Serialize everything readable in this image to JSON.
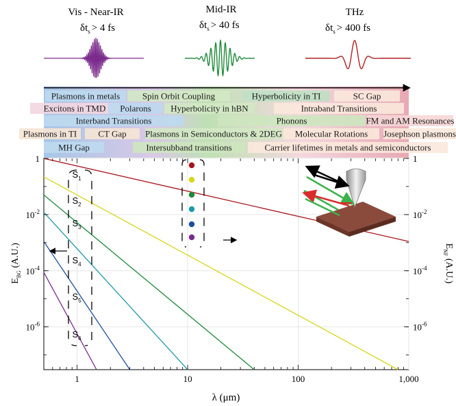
{
  "pulses": [
    {
      "name": "Vis - Near-IR",
      "duration": "δt",
      "sub": "s",
      "rel": "> 4 fs",
      "color": "#7b2b8c"
    },
    {
      "name": "Mid-IR",
      "duration": "δt",
      "sub": "s",
      "rel": "> 40 fs",
      "color": "#1f8a3a"
    },
    {
      "name": "THz",
      "duration": "δt",
      "sub": "s",
      "rel": "> 400 fs",
      "color": "#b01e23"
    }
  ],
  "phenomena": [
    {
      "label": "Plasmons in metals",
      "color": "#bcd9ef"
    },
    {
      "label": "Spin Orbit Coupling",
      "color": "#d3e8c4"
    },
    {
      "label": "Hyperbolicity in TI",
      "color": "#bfe0c4"
    },
    {
      "label": "SC Gap",
      "color": "#fbe8dc"
    },
    {
      "label": "Excitons in TMD",
      "color": "#f3d6e0"
    },
    {
      "label": "Polarons",
      "color": "#bcd9ef"
    },
    {
      "label": "Hyperbolicity in hBN",
      "color": "#d3e8c4"
    },
    {
      "label": "Intraband Transitions",
      "color": "#fbe8dc"
    },
    {
      "label": "Interband Transitions",
      "color": "#bcd9ef"
    },
    {
      "label": "Phonons",
      "color": "#cde5bf"
    },
    {
      "label": "FM and AM Resonances",
      "color": "#f6d6d6"
    },
    {
      "label": "Plasmons in TI",
      "color": "#f6e4d4"
    },
    {
      "label": "CT Gap",
      "color": "#f6e4d4"
    },
    {
      "label": "Plasmons in Semiconductors & 2DEG",
      "color": "#d3e8c4"
    },
    {
      "label": "Molecular Rotations",
      "color": "#fbe8dc"
    },
    {
      "label": "Josephson plasmons",
      "color": "#fbe8dc"
    },
    {
      "label": "MH Gap",
      "color": "#bcd9ef"
    },
    {
      "label": "Intersubband transitions",
      "color": "#cde5bf"
    },
    {
      "label": "Carrier lifetimes in metals and semiconductors",
      "color": "#fbe8dc"
    }
  ],
  "chart_data": {
    "type": "line",
    "xlabel": "λ (μm)",
    "ylabel_left_main": "E",
    "ylabel_left_sub": "BG",
    "ylabel_left_unit": " (A.U.)",
    "ylabel_right_main": "E",
    "ylabel_right_sub": "NF",
    "ylabel_right_unit": " (A.U.)",
    "x_scale": "log",
    "y_scale": "log",
    "xlim": [
      0.5,
      1000
    ],
    "ylim": [
      3e-08,
      1
    ],
    "x_ticks": [
      1,
      10,
      100,
      1000
    ],
    "x_tick_labels": [
      "1",
      "10",
      "100",
      "1,000"
    ],
    "y_ticks": [
      1,
      0.01,
      0.0001,
      1e-06
    ],
    "y_tick_labels": [
      [
        "1",
        ""
      ],
      [
        "10",
        "-2"
      ],
      [
        "10",
        "-4"
      ],
      [
        "10",
        "-6"
      ]
    ],
    "series": [
      {
        "name": "S",
        "sub": "1",
        "color": "#a8141b",
        "x": [
          0.5,
          1000
        ],
        "y": [
          1.0,
          0.0011
        ]
      },
      {
        "name": "S",
        "sub": "2",
        "color": "#d6d61a",
        "x": [
          0.5,
          800
        ],
        "y": [
          0.22,
          3e-08
        ]
      },
      {
        "name": "S",
        "sub": "3",
        "color": "#1e8a3c",
        "x": [
          0.5,
          40
        ],
        "y": [
          0.05,
          3e-08
        ]
      },
      {
        "name": "S",
        "sub": "4",
        "color": "#1e9aa8",
        "x": [
          0.5,
          10
        ],
        "y": [
          0.012,
          3e-08
        ]
      },
      {
        "name": "S",
        "sub": "5",
        "color": "#1d4f9e",
        "x": [
          0.5,
          3
        ],
        "y": [
          0.0011,
          3e-08
        ]
      },
      {
        "name": "S",
        "sub": "6",
        "color": "#7b2b8c",
        "x": [
          0.5,
          1.5
        ],
        "y": [
          8.7e-05,
          3e-08
        ]
      }
    ]
  }
}
